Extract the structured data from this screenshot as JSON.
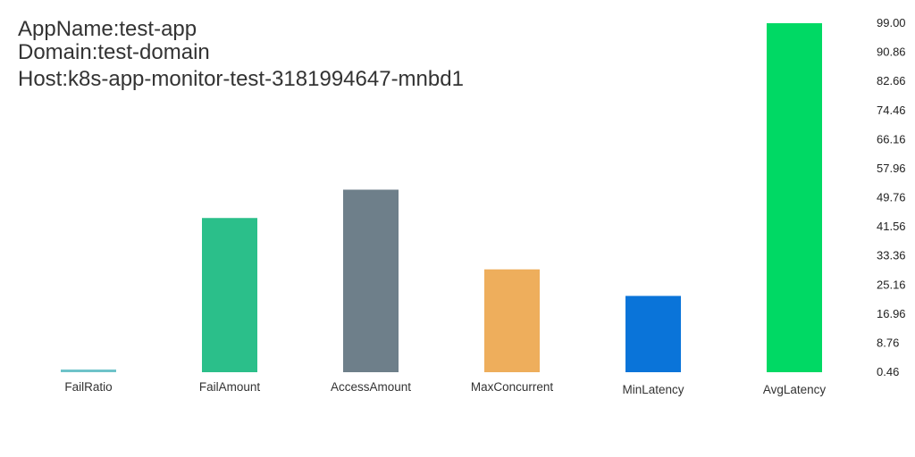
{
  "header": {
    "app_line": "AppName:test-app",
    "domain_line": "Domain:test-domain",
    "host_line": "Host:k8s-app-monitor-test-3181994647-mnbd1"
  },
  "chart_data": {
    "type": "bar",
    "title": "",
    "xlabel": "",
    "ylabel": "",
    "categories": [
      "FailRatio",
      "FailAmount",
      "AccessAmount",
      "MaxConcurrent",
      "MinLatency",
      "AvgLatency"
    ],
    "values": [
      1.0,
      44.0,
      52.0,
      29.5,
      22.0,
      99.0
    ],
    "colors": [
      "#6ec3c9",
      "#2bbf8a",
      "#6e7f8a",
      "#eeae5c",
      "#0a74d9",
      "#00d964"
    ],
    "yticks": [
      "99.00",
      "90.86",
      "82.66",
      "74.46",
      "66.16",
      "57.96",
      "49.76",
      "41.56",
      "33.36",
      "25.16",
      "16.96",
      "8.76",
      "0.46"
    ],
    "ylim": [
      0.46,
      99.0
    ],
    "y_axis_position": "right",
    "grid": false,
    "legend": "none"
  }
}
